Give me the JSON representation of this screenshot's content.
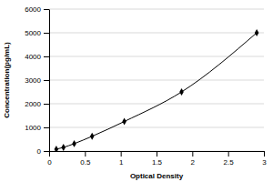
{
  "chart_data": {
    "type": "line",
    "x_label": "Optical Density",
    "y_label": "Concentration(pg/mL)",
    "x": [
      0.1,
      0.2,
      0.35,
      0.6,
      1.05,
      1.85,
      2.9
    ],
    "values": [
      78,
      156,
      312,
      625,
      1250,
      2500,
      5000
    ],
    "color": "#000000",
    "marker": "diamond",
    "line_style": "solid",
    "xlim": [
      0,
      3
    ],
    "xticks": [
      0,
      0.5,
      1,
      1.5,
      2,
      2.5,
      3
    ],
    "ylim": [
      0,
      6000
    ],
    "yticks": [
      0,
      1000,
      2000,
      3000,
      4000,
      5000,
      6000
    ],
    "grid": true
  }
}
